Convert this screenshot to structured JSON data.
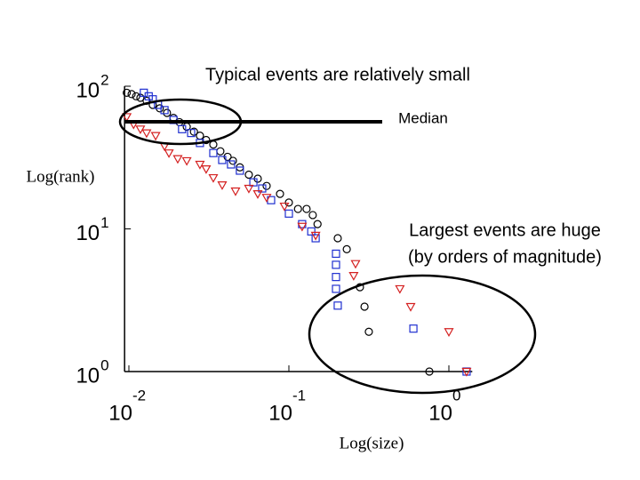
{
  "chart_data": {
    "type": "scatter",
    "title": "Typical events are relatively small",
    "annotations": [
      "Median",
      "Largest events are huge",
      "(by orders of magnitude)"
    ],
    "y_label": "Log(rank)",
    "x_label": "Log(size)",
    "xscale": "log",
    "yscale": "log",
    "xlim": [
      0.0094,
      1.4
    ],
    "ylim": [
      1,
      100
    ],
    "xticks": [
      {
        "value": 0.01,
        "label": "10",
        "exponent": "-2"
      },
      {
        "value": 0.1,
        "label": "10",
        "exponent": "-1"
      },
      {
        "value": 1,
        "label": "10",
        "exponent": "0"
      }
    ],
    "yticks": [
      {
        "value": 1,
        "label": "10",
        "exponent": "0"
      },
      {
        "value": 10,
        "label": "10",
        "exponent": "1"
      },
      {
        "value": 100,
        "label": "10",
        "exponent": "2"
      }
    ],
    "series": [
      {
        "color": "#000000",
        "marker": "circle",
        "x": [
          0.0097,
          0.0104,
          0.0111,
          0.0118,
          0.0129,
          0.0141,
          0.0156,
          0.0173,
          0.019,
          0.0207,
          0.023,
          0.0255,
          0.0278,
          0.0304,
          0.0337,
          0.0373,
          0.0414,
          0.0447,
          0.0494,
          0.0562,
          0.0639,
          0.0726,
          0.088,
          0.1,
          0.114,
          0.129,
          0.141,
          0.151,
          0.202,
          0.23,
          0.278,
          0.297,
          0.316,
          0.755
        ],
        "values": [
          90,
          88,
          85,
          83,
          79,
          74,
          70,
          65,
          60,
          56,
          52,
          48,
          45,
          42,
          39,
          35,
          32,
          30,
          27,
          24,
          22.5,
          20,
          17.6,
          15.3,
          13.8,
          13.8,
          12.5,
          10.8,
          8.6,
          7.2,
          3.9,
          2.85,
          1.9,
          1
        ]
      },
      {
        "color": "#1f2fd0",
        "marker": "square",
        "x": [
          0.0124,
          0.0133,
          0.0141,
          0.0152,
          0.0167,
          0.019,
          0.0215,
          0.0245,
          0.0278,
          0.0337,
          0.0383,
          0.0435,
          0.0494,
          0.06,
          0.0681,
          0.0774,
          0.1,
          0.121,
          0.138,
          0.147,
          0.197,
          0.197,
          0.197,
          0.197,
          0.202,
          0.6,
          1.29
        ],
        "values": [
          90,
          85,
          81,
          74,
          68,
          58,
          50,
          47,
          40,
          34,
          30.4,
          28.3,
          25.6,
          21.2,
          19.2,
          15.9,
          12.8,
          10.8,
          9.6,
          8.6,
          6.7,
          5.6,
          4.6,
          3.8,
          2.9,
          2,
          1
        ]
      },
      {
        "color": "#d42020",
        "marker": "triangle-down",
        "x": [
          0.0097,
          0.0107,
          0.0118,
          0.0129,
          0.0147,
          0.0167,
          0.0178,
          0.0202,
          0.023,
          0.0278,
          0.0304,
          0.0337,
          0.0383,
          0.0464,
          0.0562,
          0.0639,
          0.0726,
          0.0938,
          0.121,
          0.147,
          0.261,
          0.254,
          0.494,
          0.577,
          1.0,
          1.29
        ],
        "values": [
          61,
          54,
          50,
          47,
          45,
          38,
          34,
          31,
          30,
          28.3,
          26.3,
          22.8,
          20.3,
          18.4,
          19.2,
          17.6,
          16.6,
          14.4,
          10.4,
          9,
          5.7,
          4.7,
          3.8,
          2.85,
          1.9,
          1
        ]
      }
    ]
  }
}
